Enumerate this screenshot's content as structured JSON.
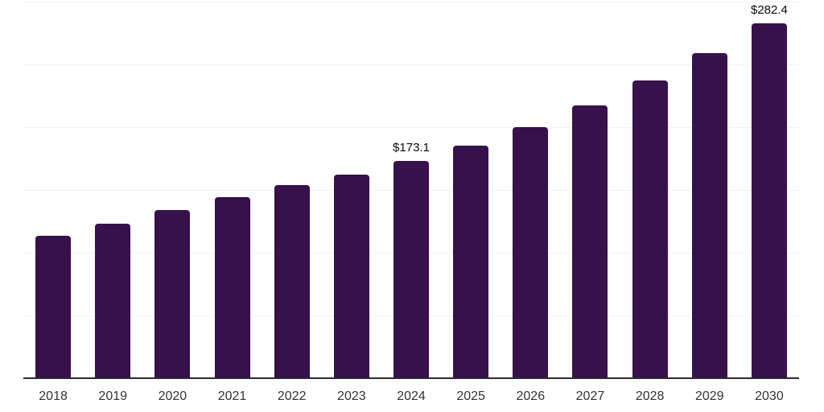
{
  "chart_data": {
    "type": "bar",
    "title": "",
    "xlabel": "",
    "ylabel": "",
    "categories": [
      "2018",
      "2019",
      "2020",
      "2021",
      "2022",
      "2023",
      "2024",
      "2025",
      "2026",
      "2027",
      "2028",
      "2029",
      "2030"
    ],
    "values": [
      113.4,
      123.2,
      134.2,
      144.0,
      153.8,
      162.0,
      173.1,
      185.3,
      200.3,
      217.2,
      237.0,
      259.0,
      282.4
    ],
    "data_labels": [
      {
        "category": "2024",
        "text": "$173.1"
      },
      {
        "category": "2030",
        "text": "$282.4"
      }
    ],
    "ylim": [
      0,
      300
    ],
    "gridline_step": 50,
    "grid": "horizontal-only",
    "y_tick_labels_visible": false,
    "legend": "none"
  },
  "style": {
    "bar_color": "#36114b",
    "axis_color": "#2b2b2b",
    "gridline_color": "#f2f2f2",
    "x_label_color": "#333333",
    "data_label_color": "#0b0b0b",
    "background": "#ffffff"
  }
}
